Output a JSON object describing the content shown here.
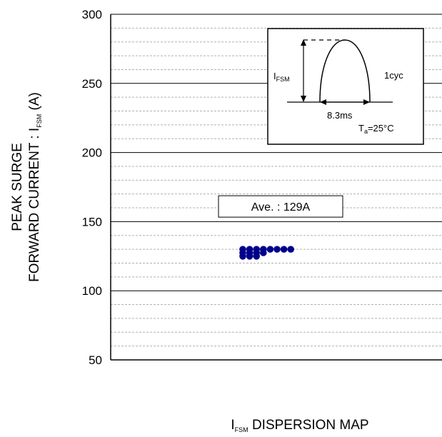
{
  "chart_data": {
    "type": "scatter",
    "title": "",
    "xlabel": "",
    "ylabel": {
      "line1": "PEAK SURGE",
      "line2_main": "FORWARD CURRENT : I",
      "line2_sub": "FSM",
      "line2_unit": " (A)"
    },
    "caption": {
      "main": "I",
      "sub": "FSM",
      "rest": " DISPERSION MAP"
    },
    "ylim": [
      50,
      300
    ],
    "yticks": [
      50,
      100,
      150,
      200,
      250,
      300
    ],
    "minor_step": 10,
    "grid": true,
    "series": [
      {
        "color": "#00008b",
        "points": [
          {
            "col": 0,
            "y": 130
          },
          {
            "col": 1,
            "y": 130
          },
          {
            "col": 2,
            "y": 130
          },
          {
            "col": 3,
            "y": 130
          },
          {
            "col": 4,
            "y": 130
          },
          {
            "col": 5,
            "y": 130
          },
          {
            "col": 6,
            "y": 130
          },
          {
            "col": 7,
            "y": 130
          },
          {
            "col": 0,
            "y": 127.5
          },
          {
            "col": 1,
            "y": 127.5
          },
          {
            "col": 2,
            "y": 127.5
          },
          {
            "col": 3,
            "y": 127.5
          },
          {
            "col": 0,
            "y": 125
          },
          {
            "col": 1,
            "y": 125
          },
          {
            "col": 2,
            "y": 125
          }
        ]
      }
    ],
    "annotation": {
      "text": "Ave. : 129A",
      "y": 161
    },
    "inset": {
      "ifsm_main": "I",
      "ifsm_sub": "FSM",
      "cycles": "1cyc",
      "duration": "8.3ms",
      "ta_main": "T",
      "ta_sub": "a",
      "ta_rest": "=25°C"
    }
  }
}
